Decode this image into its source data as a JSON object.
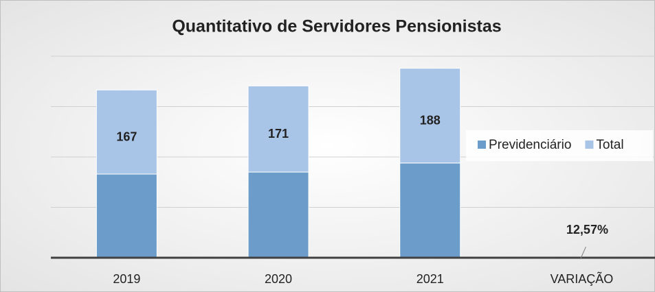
{
  "chart_data": {
    "type": "stacked_bar",
    "title": "Quantitativo de Servidores Pensionistas",
    "categories": [
      "2019",
      "2020",
      "2021",
      "VARIAÇÃO"
    ],
    "series": [
      {
        "name": "Previdenciário",
        "color": "#6b9cca",
        "values": [
          166,
          170,
          188,
          null
        ]
      },
      {
        "name": "Total",
        "color": "#a8c4e6",
        "values": [
          167,
          171,
          188,
          null
        ]
      }
    ],
    "ylim": [
      0,
      400
    ],
    "yticks": [
      0,
      100,
      200,
      300,
      400
    ],
    "grid": true,
    "legend": "right",
    "annotations": [
      {
        "text": "12,57%"
      }
    ]
  }
}
